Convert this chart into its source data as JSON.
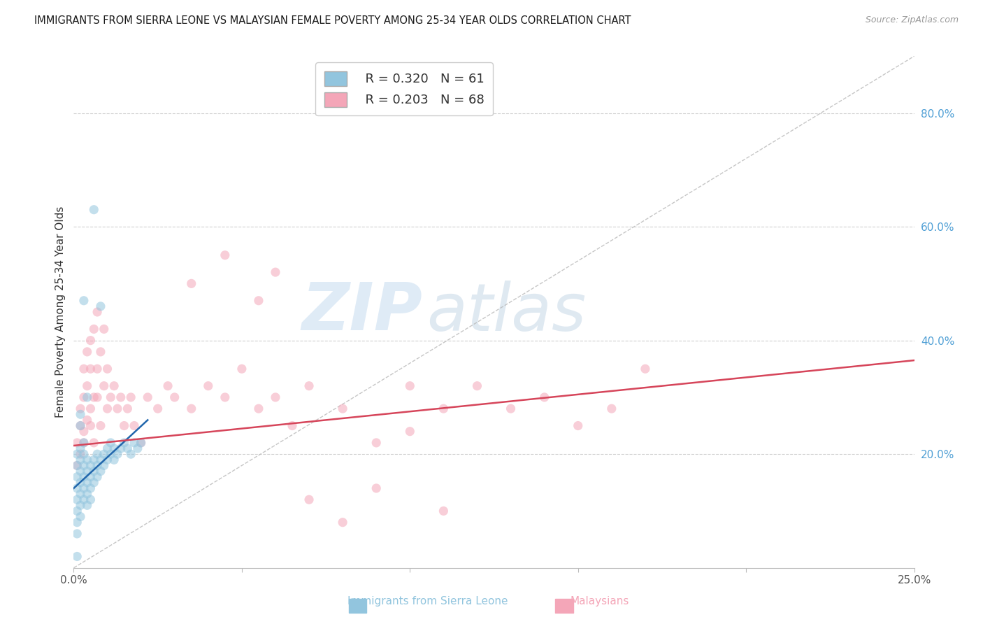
{
  "title": "IMMIGRANTS FROM SIERRA LEONE VS MALAYSIAN FEMALE POVERTY AMONG 25-34 YEAR OLDS CORRELATION CHART",
  "source": "Source: ZipAtlas.com",
  "ylabel": "Female Poverty Among 25-34 Year Olds",
  "xlabel_label1": "Immigrants from Sierra Leone",
  "xlabel_label2": "Malaysians",
  "xmin": 0.0,
  "xmax": 0.25,
  "ymin": 0.0,
  "ymax": 0.9,
  "legend_R1": "R = 0.320",
  "legend_N1": "N = 61",
  "legend_R2": "R = 0.203",
  "legend_N2": "N = 68",
  "color_blue": "#92c5de",
  "color_pink": "#f4a6b8",
  "color_blue_line": "#2166ac",
  "color_pink_line": "#d6455a",
  "color_diag": "#b8b8b8",
  "color_axis_right": "#4f9fd5",
  "watermark_zip": "#c5dff0",
  "watermark_atlas": "#c8d8e8",
  "blue_scatter_x": [
    0.001,
    0.001,
    0.001,
    0.001,
    0.001,
    0.001,
    0.001,
    0.001,
    0.002,
    0.002,
    0.002,
    0.002,
    0.002,
    0.002,
    0.002,
    0.003,
    0.003,
    0.003,
    0.003,
    0.003,
    0.003,
    0.004,
    0.004,
    0.004,
    0.004,
    0.004,
    0.005,
    0.005,
    0.005,
    0.005,
    0.006,
    0.006,
    0.006,
    0.007,
    0.007,
    0.007,
    0.008,
    0.008,
    0.009,
    0.009,
    0.01,
    0.01,
    0.011,
    0.011,
    0.012,
    0.012,
    0.013,
    0.014,
    0.015,
    0.016,
    0.017,
    0.018,
    0.019,
    0.02,
    0.008,
    0.006,
    0.004,
    0.003,
    0.002,
    0.001,
    0.002
  ],
  "blue_scatter_y": [
    0.16,
    0.14,
    0.12,
    0.1,
    0.08,
    0.06,
    0.18,
    0.2,
    0.15,
    0.13,
    0.17,
    0.11,
    0.09,
    0.19,
    0.21,
    0.14,
    0.16,
    0.18,
    0.2,
    0.12,
    0.22,
    0.15,
    0.17,
    0.19,
    0.13,
    0.11,
    0.16,
    0.18,
    0.14,
    0.12,
    0.17,
    0.19,
    0.15,
    0.18,
    0.16,
    0.2,
    0.17,
    0.19,
    0.18,
    0.2,
    0.19,
    0.21,
    0.2,
    0.22,
    0.19,
    0.21,
    0.2,
    0.21,
    0.22,
    0.21,
    0.2,
    0.22,
    0.21,
    0.22,
    0.46,
    0.63,
    0.3,
    0.47,
    0.27,
    0.02,
    0.25
  ],
  "pink_scatter_x": [
    0.001,
    0.001,
    0.002,
    0.002,
    0.002,
    0.003,
    0.003,
    0.003,
    0.003,
    0.004,
    0.004,
    0.004,
    0.005,
    0.005,
    0.005,
    0.005,
    0.006,
    0.006,
    0.006,
    0.007,
    0.007,
    0.007,
    0.008,
    0.008,
    0.009,
    0.009,
    0.01,
    0.01,
    0.011,
    0.012,
    0.013,
    0.014,
    0.015,
    0.016,
    0.017,
    0.018,
    0.02,
    0.022,
    0.025,
    0.028,
    0.03,
    0.035,
    0.04,
    0.045,
    0.05,
    0.055,
    0.06,
    0.065,
    0.07,
    0.08,
    0.09,
    0.1,
    0.11,
    0.12,
    0.13,
    0.14,
    0.15,
    0.16,
    0.17,
    0.045,
    0.09,
    0.1,
    0.11,
    0.06,
    0.07,
    0.035,
    0.08,
    0.055
  ],
  "pink_scatter_y": [
    0.22,
    0.18,
    0.25,
    0.2,
    0.28,
    0.24,
    0.3,
    0.22,
    0.35,
    0.26,
    0.38,
    0.32,
    0.28,
    0.35,
    0.4,
    0.25,
    0.3,
    0.42,
    0.22,
    0.35,
    0.45,
    0.3,
    0.38,
    0.25,
    0.32,
    0.42,
    0.28,
    0.35,
    0.3,
    0.32,
    0.28,
    0.3,
    0.25,
    0.28,
    0.3,
    0.25,
    0.22,
    0.3,
    0.28,
    0.32,
    0.3,
    0.28,
    0.32,
    0.3,
    0.35,
    0.28,
    0.3,
    0.25,
    0.32,
    0.28,
    0.22,
    0.32,
    0.28,
    0.32,
    0.28,
    0.3,
    0.25,
    0.28,
    0.35,
    0.55,
    0.14,
    0.24,
    0.1,
    0.52,
    0.12,
    0.5,
    0.08,
    0.47
  ],
  "blue_line_x": [
    0.0,
    0.022
  ],
  "blue_line_y": [
    0.14,
    0.26
  ],
  "pink_line_x": [
    0.0,
    0.25
  ],
  "pink_line_y": [
    0.215,
    0.365
  ],
  "diag_line_x": [
    0.0,
    0.25
  ],
  "diag_line_y": [
    0.0,
    0.9
  ]
}
